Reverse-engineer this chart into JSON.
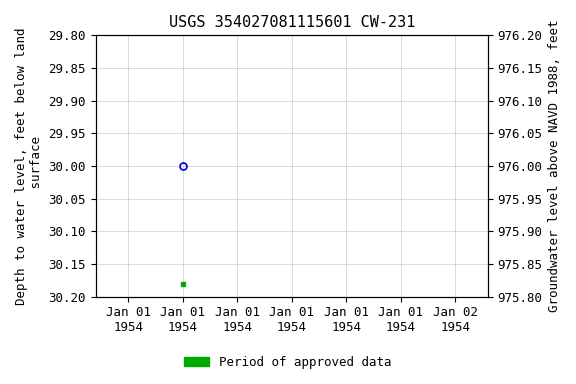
{
  "title": "USGS 354027081115601 CW-231",
  "left_ylabel": "Depth to water level, feet below land\n surface",
  "right_ylabel": "Groundwater level above NAVD 1988, feet",
  "ylim_left": [
    29.8,
    30.2
  ],
  "ylim_right": [
    975.8,
    976.2
  ],
  "yticks_left": [
    29.8,
    29.85,
    29.9,
    29.95,
    30.0,
    30.05,
    30.1,
    30.15,
    30.2
  ],
  "ytick_labels_left": [
    "29.80",
    "29.85",
    "29.90",
    "29.95",
    "30.00",
    "30.05",
    "30.10",
    "30.15",
    "30.20"
  ],
  "yticks_right": [
    975.8,
    975.85,
    975.9,
    975.95,
    976.0,
    976.05,
    976.1,
    976.15,
    976.2
  ],
  "ytick_labels_right": [
    "975.80",
    "975.85",
    "975.90",
    "975.95",
    "976.00",
    "976.05",
    "976.10",
    "976.15",
    "976.20"
  ],
  "point1_date_num": 0.5,
  "point1_value": 30.0,
  "point1_color": "#0000cc",
  "point1_marker": "o",
  "point1_markersize": 5,
  "point2_date_num": 0.5,
  "point2_value": 30.18,
  "point2_color": "#00aa00",
  "point2_marker": "s",
  "point2_markersize": 3,
  "xtick_positions": [
    0.0,
    0.5,
    1.0,
    1.5,
    2.0,
    2.5,
    3.0
  ],
  "xtick_labels": [
    "Jan 01\n1954",
    "Jan 01\n1954",
    "Jan 01\n1954",
    "Jan 01\n1954",
    "Jan 01\n1954",
    "Jan 01\n1954",
    "Jan 02\n1954"
  ],
  "xlim": [
    -0.3,
    3.3
  ],
  "legend_label": "Period of approved data",
  "legend_color": "#00aa00",
  "background_color": "#ffffff",
  "grid_color": "#cccccc",
  "title_fontsize": 11,
  "axis_label_fontsize": 9,
  "tick_fontsize": 9
}
